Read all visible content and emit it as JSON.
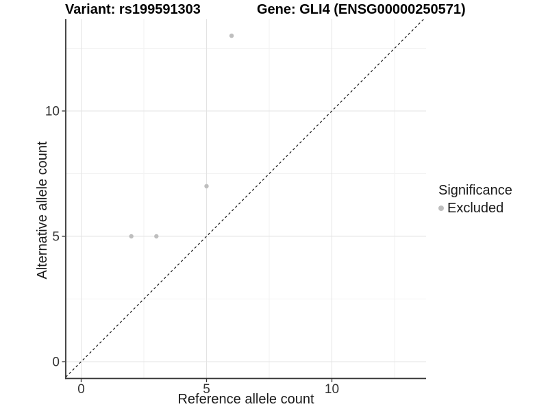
{
  "chart_data": {
    "type": "scatter",
    "title_left": "Variant: rs199591303",
    "title_right": "Gene: GLI4 (ENSG00000250571)",
    "xlabel": "Reference allele count",
    "ylabel": "Alternative allele count",
    "xlim": [
      -0.6,
      13.8
    ],
    "ylim": [
      -0.7,
      13.7
    ],
    "x_major_ticks": [
      0,
      5,
      10
    ],
    "y_major_ticks": [
      0,
      5,
      10
    ],
    "x_minor_gridlines": [
      2.5,
      7.5,
      12.5
    ],
    "y_minor_gridlines": [
      2.5,
      7.5,
      12.5
    ],
    "grid": "major and minor gridlines on, white panel background",
    "identity_line": {
      "equation": "y = x",
      "style": "dashed",
      "color": "#222222"
    },
    "series": [
      {
        "name": "Excluded",
        "color": "#bebebe",
        "points": [
          {
            "x": 2,
            "y": 5
          },
          {
            "x": 3,
            "y": 5
          },
          {
            "x": 5,
            "y": 7
          },
          {
            "x": 6,
            "y": 13
          }
        ]
      }
    ],
    "legend": {
      "title": "Significance",
      "position": "right",
      "items": [
        {
          "label": "Excluded",
          "color": "#bebebe"
        }
      ]
    }
  },
  "colors": {
    "background": "#ffffff",
    "grid_major": "#e3e3e3",
    "grid_minor": "#f2f2f2",
    "axis_line": "#333333",
    "tick_mark": "#333333",
    "tick_label": "#333333",
    "point": "#bebebe",
    "dashed_line": "#222222"
  }
}
